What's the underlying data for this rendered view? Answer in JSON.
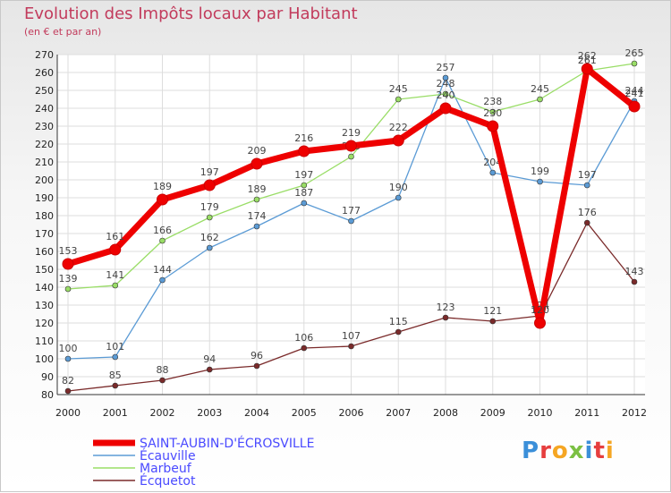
{
  "chart_data": {
    "type": "line",
    "title": "Evolution des Impôts locaux par Habitant",
    "subtitle": "(en € et par an)",
    "x": [
      "2000",
      "2001",
      "2002",
      "2003",
      "2004",
      "2005",
      "2006",
      "2007",
      "2008",
      "2009",
      "2010",
      "2011",
      "2012"
    ],
    "yticks": [
      80,
      90,
      100,
      110,
      120,
      130,
      140,
      150,
      160,
      170,
      180,
      190,
      200,
      210,
      220,
      230,
      240,
      250,
      260,
      270
    ],
    "ylim": [
      80,
      270
    ],
    "series": [
      {
        "name": "SAINT-AUBIN-D'ÉCROSVILLE",
        "color": "#ee0000",
        "values": [
          153,
          161,
          189,
          197,
          209,
          216,
          219,
          222,
          240,
          230,
          120,
          262,
          241
        ]
      },
      {
        "name": "Écauville",
        "color": "#5b9bd5",
        "values": [
          100,
          101,
          144,
          162,
          174,
          187,
          177,
          190,
          257,
          204,
          199,
          197,
          244
        ]
      },
      {
        "name": "Marbeuf",
        "color": "#99dd66",
        "values": [
          139,
          141,
          166,
          179,
          189,
          197,
          213,
          245,
          248,
          238,
          245,
          261,
          265
        ]
      },
      {
        "name": "Écquetot",
        "color": "#7a2a2a",
        "values": [
          82,
          85,
          88,
          94,
          96,
          106,
          107,
          115,
          123,
          121,
          124,
          176,
          143
        ]
      }
    ]
  },
  "logo": {
    "text": "Proxiti",
    "colors": [
      "#3b8fd9",
      "#e63e3e",
      "#f5a623",
      "#7bc043",
      "#3b8fd9",
      "#e63e3e",
      "#f5a623"
    ]
  }
}
